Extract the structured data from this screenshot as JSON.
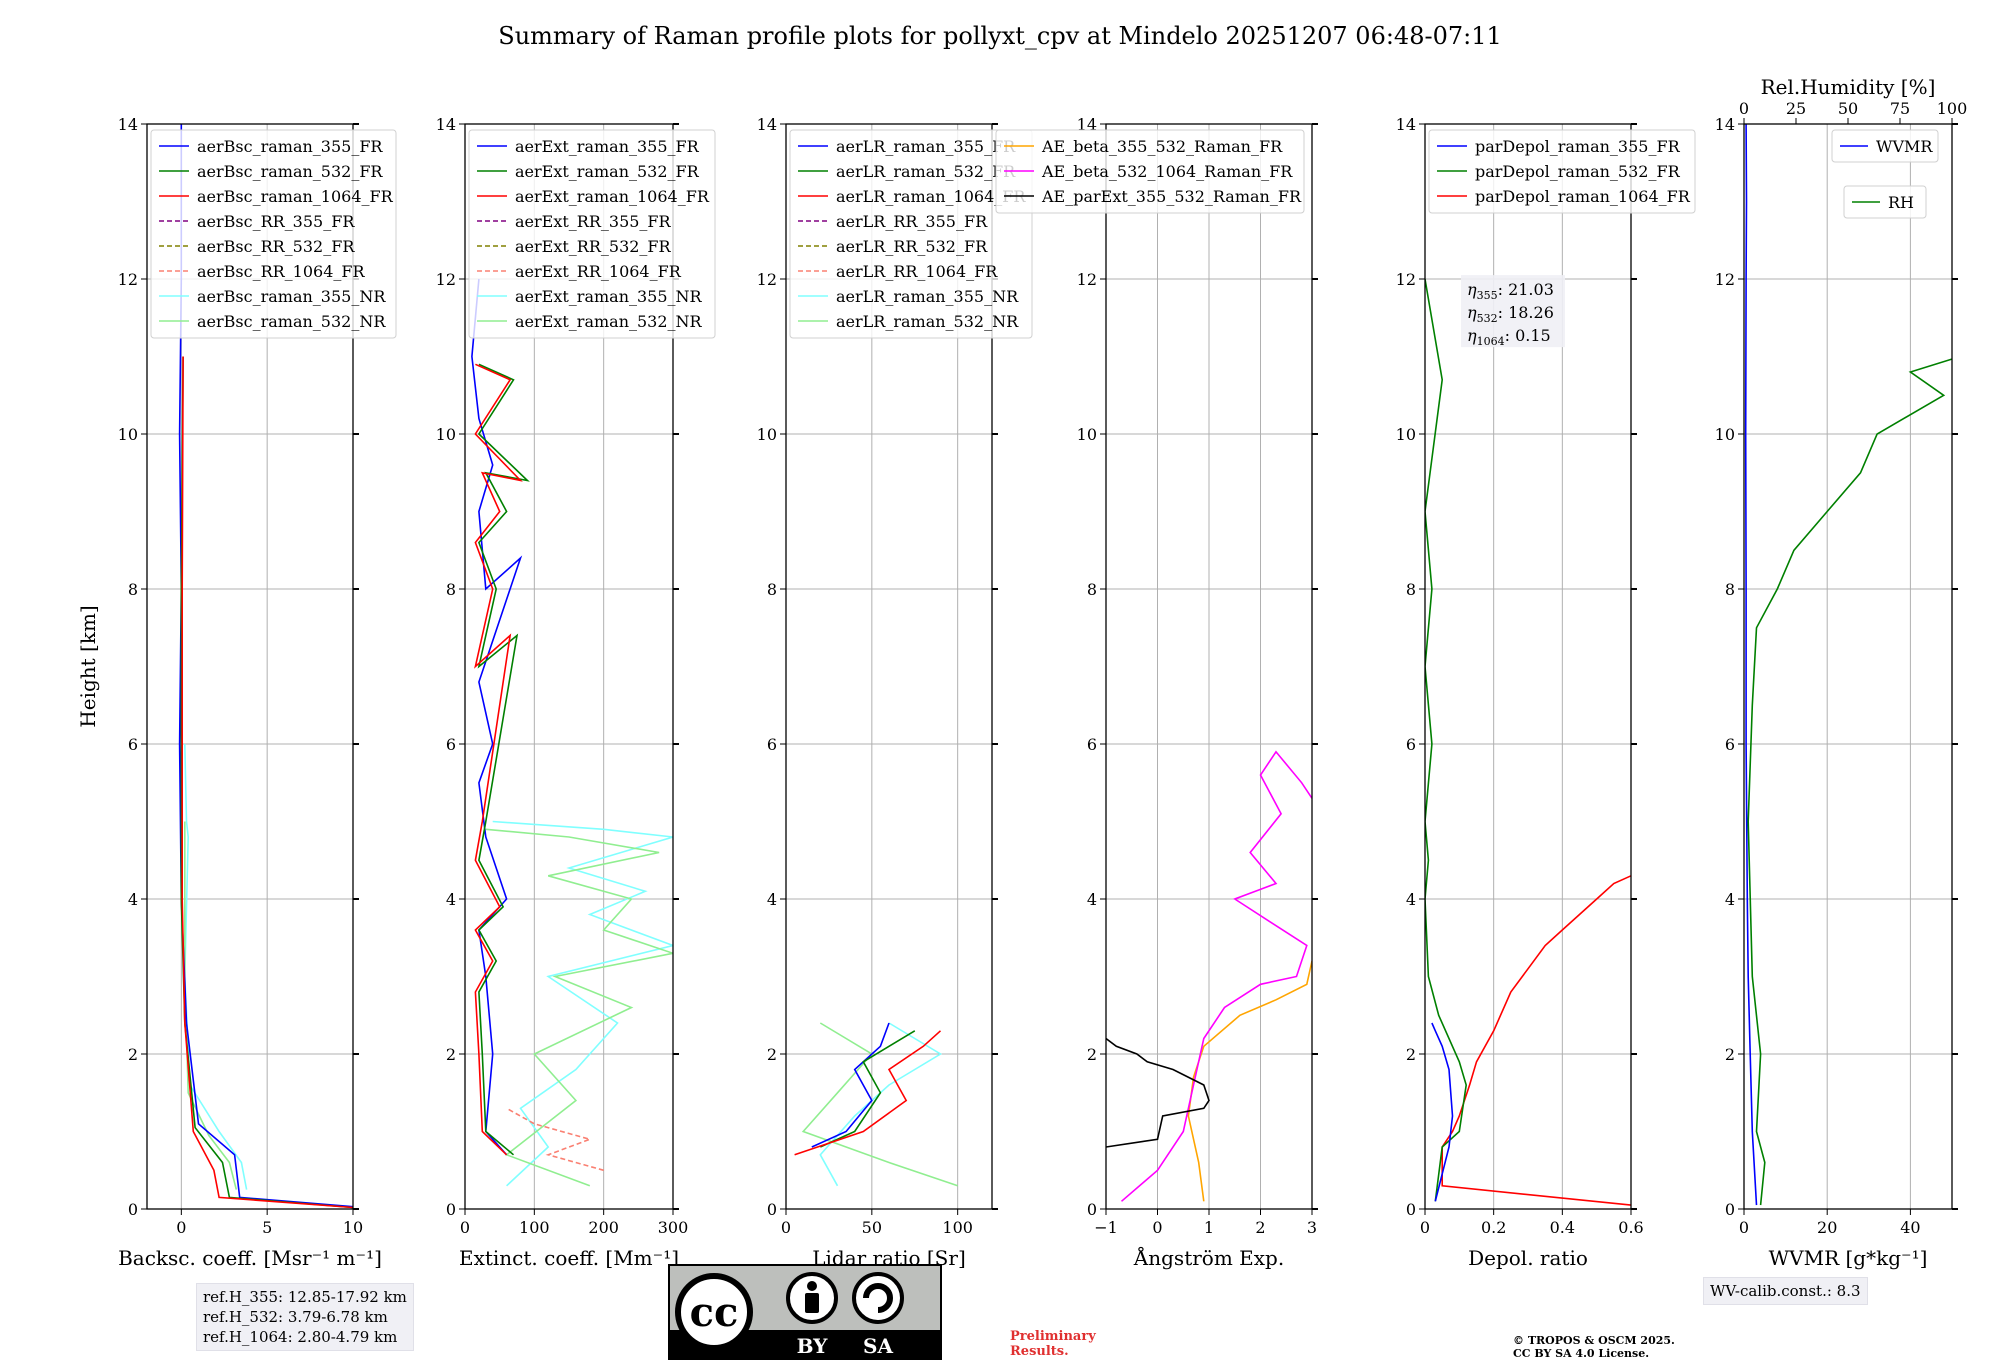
{
  "title": "Summary of Raman profile plots for pollyxt_cpv at Mindelo 20251207 06:48-07:11",
  "colors": {
    "blue": "#0000ff",
    "green": "#008000",
    "red": "#ff0000",
    "purple": "#800080",
    "olive": "#808000",
    "salmon": "#fa8072",
    "cyan": "#80ffff",
    "lightgreen": "#90ee90",
    "orange": "#ffa500",
    "magenta": "#ff00ff",
    "black": "#000000"
  },
  "chart_data": [
    {
      "type": "line",
      "id": "bsc",
      "xlabel": "Backsc. coeff. [Msr⁻¹ m⁻¹]",
      "ylabel": "Height [km]",
      "xlim": [
        -2,
        10
      ],
      "ylim": [
        0,
        14
      ],
      "xticks": [
        0,
        5,
        10
      ],
      "yticks": [
        0,
        2,
        4,
        6,
        8,
        10,
        12,
        14
      ],
      "legend": [
        {
          "label": "aerBsc_raman_355_FR",
          "color": "blue",
          "dash": false
        },
        {
          "label": "aerBsc_raman_532_FR",
          "color": "green",
          "dash": false
        },
        {
          "label": "aerBsc_raman_1064_FR",
          "color": "red",
          "dash": false
        },
        {
          "label": "aerBsc_RR_355_FR",
          "color": "purple",
          "dash": true
        },
        {
          "label": "aerBsc_RR_532_FR",
          "color": "olive",
          "dash": true
        },
        {
          "label": "aerBsc_RR_1064_FR",
          "color": "salmon",
          "dash": true
        },
        {
          "label": "aerBsc_raman_355_NR",
          "color": "cyan",
          "dash": false
        },
        {
          "label": "aerBsc_raman_532_NR",
          "color": "lightgreen",
          "dash": false
        }
      ],
      "series": [
        {
          "name": "aerBsc_raman_355_NR",
          "color": "cyan",
          "x": [
            3.8,
            3.5,
            2.2,
            0.5,
            0.2,
            0.4,
            0.3,
            0.2
          ],
          "y": [
            0.25,
            0.6,
            1.0,
            1.6,
            3.0,
            4.8,
            5.0,
            6.0
          ]
        },
        {
          "name": "aerBsc_raman_532_NR",
          "color": "lightgreen",
          "x": [
            3.2,
            2.8,
            1.6,
            0.4,
            0.2,
            0.2
          ],
          "y": [
            0.25,
            0.6,
            0.95,
            1.5,
            3.0,
            5.0
          ]
        },
        {
          "name": "aerBsc_raman_355_FR",
          "color": "blue",
          "x": [
            10,
            3.4,
            3.1,
            1.0,
            0.3,
            0.0,
            -0.1,
            0.0,
            -0.1,
            0.0,
            0.0
          ],
          "y": [
            0.03,
            0.15,
            0.7,
            1.1,
            2.4,
            4.0,
            6.0,
            8.0,
            10.0,
            12.0,
            14.0
          ]
        },
        {
          "name": "aerBsc_raman_532_FR",
          "color": "green",
          "x": [
            10,
            2.8,
            2.4,
            0.8,
            0.2,
            0.0,
            0.0,
            0.0,
            0.1
          ],
          "y": [
            0.02,
            0.15,
            0.6,
            1.05,
            2.4,
            4.0,
            6.0,
            8.0,
            11.0
          ]
        },
        {
          "name": "aerBsc_raman_1064_FR",
          "color": "red",
          "x": [
            10,
            2.2,
            1.9,
            0.7,
            0.2,
            0.05,
            0.05,
            0.05,
            0.1
          ],
          "y": [
            0.02,
            0.15,
            0.5,
            1.0,
            2.4,
            4.0,
            6.0,
            8.0,
            11.0
          ]
        }
      ]
    },
    {
      "type": "line",
      "id": "ext",
      "xlabel": "Extinct. coeff. [Mm⁻¹]",
      "xlim": [
        0,
        300
      ],
      "ylim": [
        0,
        14
      ],
      "xticks": [
        0,
        100,
        200,
        300
      ],
      "yticks": [
        0,
        2,
        4,
        6,
        8,
        10,
        12,
        14
      ],
      "legend": [
        {
          "label": "aerExt_raman_355_FR",
          "color": "blue",
          "dash": false
        },
        {
          "label": "aerExt_raman_532_FR",
          "color": "green",
          "dash": false
        },
        {
          "label": "aerExt_raman_1064_FR",
          "color": "red",
          "dash": false
        },
        {
          "label": "aerExt_RR_355_FR",
          "color": "purple",
          "dash": true
        },
        {
          "label": "aerExt_RR_532_FR",
          "color": "olive",
          "dash": true
        },
        {
          "label": "aerExt_RR_1064_FR",
          "color": "salmon",
          "dash": true
        },
        {
          "label": "aerExt_raman_355_NR",
          "color": "cyan",
          "dash": false
        },
        {
          "label": "aerExt_raman_532_NR",
          "color": "lightgreen",
          "dash": false
        }
      ],
      "series": [
        {
          "name": "aerExt_raman_355_NR",
          "color": "cyan",
          "x": [
            60,
            120,
            80,
            160,
            220,
            120,
            300,
            180,
            260,
            150,
            300,
            200,
            40
          ],
          "y": [
            0.3,
            0.8,
            1.3,
            1.8,
            2.4,
            3.0,
            3.4,
            3.8,
            4.1,
            4.4,
            4.8,
            4.9,
            5.0
          ]
        },
        {
          "name": "aerExt_raman_532_NR",
          "color": "lightgreen",
          "x": [
            180,
            60,
            160,
            100,
            240,
            130,
            300,
            200,
            240,
            120,
            280,
            150,
            30
          ],
          "y": [
            0.3,
            0.7,
            1.4,
            2.0,
            2.6,
            3.0,
            3.3,
            3.6,
            4.0,
            4.3,
            4.6,
            4.8,
            4.9
          ]
        },
        {
          "name": "aerExt_RR_1064_FR",
          "color": "salmon",
          "x": [
            200,
            120,
            180,
            100,
            60
          ],
          "y": [
            0.5,
            0.7,
            0.9,
            1.1,
            1.3
          ],
          "dash": true
        },
        {
          "name": "aerExt_raman_355_FR",
          "color": "blue",
          "x": [
            60,
            30,
            40,
            30,
            20,
            60,
            30,
            20,
            40,
            20,
            80,
            30,
            20,
            40,
            20,
            10,
            20
          ],
          "y": [
            0.7,
            1.0,
            2.0,
            3.0,
            3.6,
            4.0,
            4.8,
            5.5,
            6.0,
            6.8,
            8.4,
            8.0,
            9.0,
            9.6,
            10.2,
            11.0,
            12.0
          ]
        },
        {
          "name": "aerExt_raman_532_FR",
          "color": "green",
          "x": [
            70,
            30,
            25,
            20,
            45,
            20,
            55,
            20,
            30,
            75,
            20,
            45,
            20,
            60,
            30,
            90,
            20,
            70,
            20
          ],
          "y": [
            0.7,
            1.0,
            2.0,
            2.8,
            3.2,
            3.6,
            3.9,
            4.5,
            5.0,
            7.4,
            7.0,
            8.0,
            8.6,
            9.0,
            9.5,
            9.4,
            10.0,
            10.7,
            10.9
          ]
        },
        {
          "name": "aerExt_raman_1064_FR",
          "color": "red",
          "x": [
            60,
            25,
            20,
            15,
            40,
            15,
            50,
            15,
            25,
            65,
            15,
            40,
            15,
            50,
            25,
            80,
            15,
            65,
            15
          ],
          "y": [
            0.7,
            1.0,
            2.0,
            2.8,
            3.2,
            3.6,
            3.9,
            4.5,
            5.0,
            7.4,
            7.0,
            8.0,
            8.6,
            9.0,
            9.5,
            9.4,
            10.0,
            10.7,
            10.9
          ]
        }
      ]
    },
    {
      "type": "line",
      "id": "lr",
      "xlabel": "Lidar ratio [Sr]",
      "xlim": [
        0,
        120
      ],
      "ylim": [
        0,
        14
      ],
      "xticks": [
        0,
        50,
        100
      ],
      "yticks": [
        0,
        2,
        4,
        6,
        8,
        10,
        12,
        14
      ],
      "legend": [
        {
          "label": "aerLR_raman_355_FR",
          "color": "blue",
          "dash": false
        },
        {
          "label": "aerLR_raman_532_FR",
          "color": "green",
          "dash": false
        },
        {
          "label": "aerLR_raman_1064_FR",
          "color": "red",
          "dash": false
        },
        {
          "label": "aerLR_RR_355_FR",
          "color": "purple",
          "dash": true
        },
        {
          "label": "aerLR_RR_532_FR",
          "color": "olive",
          "dash": true
        },
        {
          "label": "aerLR_RR_1064_FR",
          "color": "salmon",
          "dash": true
        },
        {
          "label": "aerLR_raman_355_NR",
          "color": "cyan",
          "dash": false
        },
        {
          "label": "aerLR_raman_532_NR",
          "color": "lightgreen",
          "dash": false
        }
      ],
      "series": [
        {
          "name": "aerLR_raman_355_NR",
          "color": "cyan",
          "x": [
            30,
            20,
            40,
            60,
            90,
            60
          ],
          "y": [
            0.3,
            0.7,
            1.2,
            1.6,
            2.0,
            2.4
          ]
        },
        {
          "name": "aerLR_raman_532_NR",
          "color": "lightgreen",
          "x": [
            100,
            60,
            10,
            30,
            50,
            20
          ],
          "y": [
            0.3,
            0.6,
            1.0,
            1.5,
            2.0,
            2.4
          ]
        },
        {
          "name": "aerLR_raman_355_FR",
          "color": "blue",
          "x": [
            15,
            35,
            50,
            40,
            55,
            60
          ],
          "y": [
            0.8,
            1.0,
            1.4,
            1.8,
            2.1,
            2.4
          ]
        },
        {
          "name": "aerLR_raman_532_FR",
          "color": "green",
          "x": [
            20,
            40,
            55,
            45,
            60,
            75
          ],
          "y": [
            0.8,
            1.0,
            1.5,
            1.9,
            2.1,
            2.3
          ]
        },
        {
          "name": "aerLR_raman_1064_FR",
          "color": "red",
          "x": [
            5,
            45,
            70,
            60,
            80,
            90
          ],
          "y": [
            0.7,
            1.0,
            1.4,
            1.8,
            2.1,
            2.3
          ]
        }
      ]
    },
    {
      "type": "line",
      "id": "ae",
      "xlabel": "Ångström Exp.",
      "xlim": [
        -1,
        3
      ],
      "ylim": [
        0,
        14
      ],
      "xticks": [
        -1,
        0,
        1,
        2,
        3
      ],
      "yticks": [
        0,
        2,
        4,
        6,
        8,
        10,
        12,
        14
      ],
      "legend": [
        {
          "label": "AE_beta_355_532_Raman_FR",
          "color": "orange",
          "dash": false
        },
        {
          "label": "AE_beta_532_1064_Raman_FR",
          "color": "magenta",
          "dash": false
        },
        {
          "label": "AE_parExt_355_532_Raman_FR",
          "color": "black",
          "dash": false
        }
      ],
      "series": [
        {
          "name": "AE_beta_355_532_Raman_FR",
          "color": "orange",
          "x": [
            0.9,
            0.8,
            0.6,
            0.7,
            0.9,
            1.6,
            2.3,
            2.9,
            3.0
          ],
          "y": [
            0.1,
            0.6,
            1.2,
            1.7,
            2.1,
            2.5,
            2.7,
            2.9,
            3.2
          ]
        },
        {
          "name": "AE_beta_532_1064_Raman_FR",
          "color": "magenta",
          "x": [
            -0.7,
            0.0,
            0.5,
            0.7,
            0.9,
            1.3,
            2.0,
            2.7,
            2.9,
            2.2,
            1.5,
            2.3,
            1.8,
            2.4,
            2.0,
            2.3,
            2.8,
            3.0
          ],
          "y": [
            0.1,
            0.5,
            1.0,
            1.6,
            2.2,
            2.6,
            2.9,
            3.0,
            3.4,
            3.7,
            4.0,
            4.2,
            4.6,
            5.1,
            5.6,
            5.9,
            5.5,
            5.3
          ]
        },
        {
          "name": "AE_parExt_355_532_Raman_FR",
          "color": "black",
          "x": [
            -1,
            0.0,
            0.1,
            0.9,
            1.0,
            0.9,
            0.3,
            -0.2,
            -0.4,
            -0.8,
            -1.0
          ],
          "y": [
            0.8,
            0.9,
            1.2,
            1.3,
            1.4,
            1.6,
            1.8,
            1.9,
            2.0,
            2.1,
            2.2
          ]
        }
      ]
    },
    {
      "type": "line",
      "id": "depol",
      "xlabel": "Depol. ratio",
      "xlim": [
        0,
        0.6
      ],
      "ylim": [
        0,
        14
      ],
      "xticks": [
        0.0,
        0.2,
        0.4,
        0.6
      ],
      "yticks": [
        0,
        2,
        4,
        6,
        8,
        10,
        12,
        14
      ],
      "legend": [
        {
          "label": "parDepol_raman_355_FR",
          "color": "blue",
          "dash": false
        },
        {
          "label": "parDepol_raman_532_FR",
          "color": "green",
          "dash": false
        },
        {
          "label": "parDepol_raman_1064_FR",
          "color": "red",
          "dash": false
        }
      ],
      "eta": {
        "e355": ": 21.03",
        "e532": ": 18.26",
        "e1064": ": 0.15"
      },
      "series": [
        {
          "name": "parDepol_raman_1064_FR",
          "color": "red",
          "x": [
            0.6,
            0.05,
            0.05,
            0.08,
            0.1,
            0.13,
            0.15,
            0.2,
            0.25,
            0.3,
            0.35,
            0.4,
            0.45,
            0.5,
            0.55,
            0.6
          ],
          "y": [
            0.05,
            0.3,
            0.8,
            1.0,
            1.2,
            1.6,
            1.9,
            2.3,
            2.8,
            3.1,
            3.4,
            3.6,
            3.8,
            4.0,
            4.2,
            4.3
          ]
        },
        {
          "name": "parDepol_raman_532_FR",
          "color": "green",
          "x": [
            0.03,
            0.05,
            0.1,
            0.12,
            0.1,
            0.04,
            0.01,
            0.0,
            0.01,
            0.0,
            0.02,
            0.0,
            0.02,
            0.0,
            0.05,
            0.0
          ],
          "y": [
            0.1,
            0.8,
            1.0,
            1.6,
            1.9,
            2.5,
            3.0,
            4.0,
            4.5,
            5.0,
            6.0,
            7.0,
            8.0,
            9.0,
            10.7,
            12.0
          ]
        },
        {
          "name": "parDepol_raman_355_FR",
          "color": "blue",
          "x": [
            0.03,
            0.07,
            0.08,
            0.07,
            0.05,
            0.03,
            0.02
          ],
          "y": [
            0.1,
            0.8,
            1.2,
            1.8,
            2.1,
            2.3,
            2.4
          ]
        }
      ]
    },
    {
      "type": "line",
      "id": "wv",
      "xlabel": "WVMR [g*kg⁻¹]",
      "xlim": [
        0,
        50
      ],
      "ylim": [
        0,
        14
      ],
      "xticks": [
        0,
        20,
        40
      ],
      "yticks": [
        0,
        2,
        4,
        6,
        8,
        10,
        12,
        14
      ],
      "top_axis": {
        "label": "Rel.Humidity [%]",
        "ticks": [
          0,
          25,
          50,
          75,
          100
        ]
      },
      "legend": [
        {
          "label": "WVMR",
          "color": "blue",
          "dash": false
        },
        {
          "label": "RH",
          "color": "green",
          "dash": false
        }
      ],
      "series": [
        {
          "name": "WVMR",
          "color": "blue",
          "x": [
            3,
            2,
            1.5,
            1,
            0.8,
            0.5,
            0.5,
            0.4,
            0.5,
            0.6,
            0.5
          ],
          "y": [
            0.05,
            1.0,
            2.0,
            3.0,
            4.0,
            6.0,
            8.0,
            10.0,
            12.0,
            13.0,
            14.0
          ]
        },
        {
          "name": "RH",
          "color": "green",
          "x": [
            4,
            5,
            3,
            4,
            2,
            1,
            2,
            3,
            8,
            12,
            20,
            28,
            32,
            48,
            40,
            52
          ],
          "y": [
            0.05,
            0.6,
            1.0,
            2.0,
            3.0,
            5.0,
            6.5,
            7.5,
            8.0,
            8.5,
            9.0,
            9.5,
            10.0,
            10.5,
            10.8,
            11.0
          ]
        }
      ]
    }
  ],
  "refbox": {
    "l355": "ref.H_355: 12.85-17.92 km",
    "l532": "ref.H_532: 3.79-6.78 km",
    "l1064": "ref.H_1064: 2.80-4.79 km"
  },
  "wvcalib": "WV-calib.const.: 8.3",
  "cc": {
    "by": "BY",
    "sa": "SA"
  },
  "prelim": {
    "line1": "Preliminary",
    "line2": "Results."
  },
  "copyright": {
    "line1": "© TROPOS & OSCM 2025.",
    "line2": "CC BY SA 4.0 License."
  }
}
